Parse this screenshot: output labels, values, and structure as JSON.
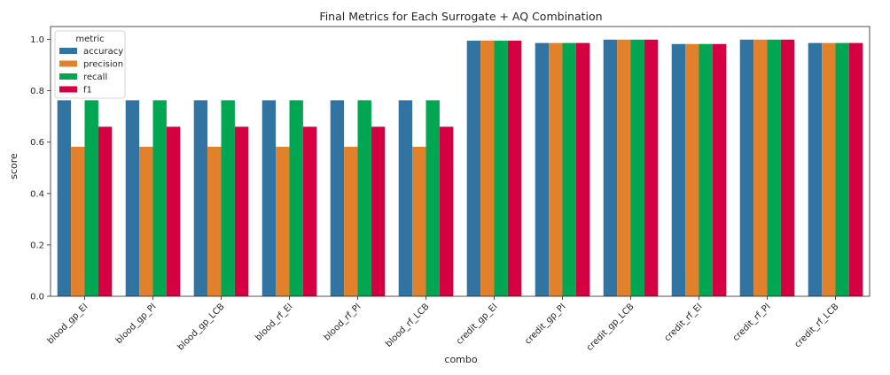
{
  "chart_data": {
    "type": "bar",
    "title": "Final Metrics for Each Surrogate + AQ Combination",
    "xlabel": "combo",
    "ylabel": "score",
    "ylim": [
      0,
      1.05
    ],
    "yticks": [
      "0.0",
      "0.2",
      "0.4",
      "0.6",
      "0.8",
      "1.0"
    ],
    "ytick_values": [
      0,
      0.2,
      0.4,
      0.6,
      0.8,
      1.0
    ],
    "legend": {
      "title": "metric",
      "placement": "top-left"
    },
    "categories": [
      "blood_gp_EI",
      "blood_gp_PI",
      "blood_gp_LCB",
      "blood_rf_EI",
      "blood_rf_PI",
      "blood_rf_LCB",
      "credit_gp_EI",
      "credit_gp_PI",
      "credit_gp_LCB",
      "credit_rf_EI",
      "credit_rf_PI",
      "credit_rf_LCB"
    ],
    "series": [
      {
        "name": "accuracy",
        "color": "#3274a1",
        "values": [
          0.763,
          0.763,
          0.763,
          0.763,
          0.763,
          0.763,
          0.995,
          0.986,
          0.999,
          0.982,
          0.999,
          0.986
        ]
      },
      {
        "name": "precision",
        "color": "#e1812c",
        "values": [
          0.582,
          0.582,
          0.582,
          0.582,
          0.582,
          0.582,
          0.995,
          0.986,
          0.999,
          0.982,
          0.999,
          0.986
        ]
      },
      {
        "name": "recall",
        "color": "#00a651",
        "values": [
          0.763,
          0.763,
          0.763,
          0.763,
          0.763,
          0.763,
          0.995,
          0.986,
          0.999,
          0.982,
          0.999,
          0.986
        ]
      },
      {
        "name": "f1",
        "color": "#d50041",
        "values": [
          0.66,
          0.66,
          0.66,
          0.66,
          0.66,
          0.66,
          0.995,
          0.986,
          0.999,
          0.982,
          0.999,
          0.986
        ]
      }
    ],
    "grid": false
  }
}
